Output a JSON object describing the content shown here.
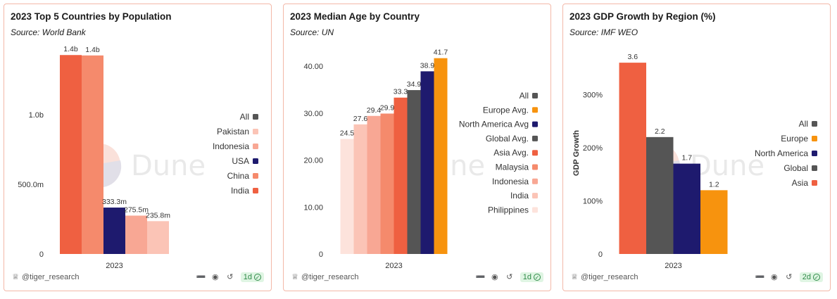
{
  "footer": {
    "user": "@tiger_research"
  },
  "watermark": "Dune",
  "chart_data": [
    {
      "type": "bar",
      "title": "2023 Top 5 Countries by Population",
      "source": "Source: World Bank",
      "xlabel": "",
      "ylabel": "",
      "category": "2023",
      "ylim": [
        0,
        1450000000
      ],
      "yticks": [
        {
          "value": 0,
          "label": "0"
        },
        {
          "value": 500000000,
          "label": "500.0m"
        },
        {
          "value": 1000000000,
          "label": "1.0b"
        }
      ],
      "series": [
        {
          "name": "India",
          "value": 1428600000,
          "label": "1.4b",
          "color": "#ef6041"
        },
        {
          "name": "China",
          "value": 1425700000,
          "label": "1.4b",
          "color": "#f58a6c"
        },
        {
          "name": "USA",
          "value": 333300000,
          "label": "333.3m",
          "color": "#1e1a6e"
        },
        {
          "name": "Indonesia",
          "value": 275500000,
          "label": "275.5m",
          "color": "#f8a794"
        },
        {
          "name": "Pakistan",
          "value": 235800000,
          "label": "235.8m",
          "color": "#fbc4b6"
        }
      ],
      "legend": [
        {
          "label": "All",
          "color": "#555555"
        },
        {
          "label": "Pakistan",
          "color": "#fbc4b6"
        },
        {
          "label": "Indonesia",
          "color": "#f8a794"
        },
        {
          "label": "USA",
          "color": "#1e1a6e"
        },
        {
          "label": "China",
          "color": "#f58a6c"
        },
        {
          "label": "India",
          "color": "#ef6041"
        }
      ],
      "footer_badge": "1d"
    },
    {
      "type": "bar",
      "title": "2023 Median Age by Country",
      "source": "Source: UN",
      "xlabel": "",
      "ylabel": "",
      "category": "2023",
      "ylim": [
        0,
        43
      ],
      "yticks": [
        {
          "value": 0,
          "label": "0"
        },
        {
          "value": 10,
          "label": "10.00"
        },
        {
          "value": 20,
          "label": "20.00"
        },
        {
          "value": 30,
          "label": "30.00"
        },
        {
          "value": 40,
          "label": "40.00"
        }
      ],
      "series": [
        {
          "name": "Philippines",
          "value": 24.5,
          "label": "24.5",
          "color": "#fde3dc"
        },
        {
          "name": "India",
          "value": 27.6,
          "label": "27.6",
          "color": "#fbc4b6"
        },
        {
          "name": "Indonesia",
          "value": 29.4,
          "label": "29.4",
          "color": "#f8a794"
        },
        {
          "name": "Malaysia",
          "value": 29.9,
          "label": "29.9",
          "color": "#f58a6c"
        },
        {
          "name": "Asia Avg.",
          "value": 33.3,
          "label": "33.3",
          "color": "#ef6041"
        },
        {
          "name": "Global Avg.",
          "value": 34.9,
          "label": "34.9",
          "color": "#555555"
        },
        {
          "name": "North America Avg.",
          "value": 38.9,
          "label": "38.9",
          "color": "#1e1a6e"
        },
        {
          "name": "Europe Avg.",
          "value": 41.7,
          "label": "41.7",
          "color": "#f7930e"
        }
      ],
      "legend": [
        {
          "label": "All",
          "color": "#555555"
        },
        {
          "label": "Europe Avg.",
          "color": "#f7930e"
        },
        {
          "label": "North America Avg",
          "color": "#1e1a6e"
        },
        {
          "label": "Global Avg.",
          "color": "#555555"
        },
        {
          "label": "Asia Avg.",
          "color": "#ef6041"
        },
        {
          "label": "Malaysia",
          "color": "#f58a6c"
        },
        {
          "label": "Indonesia",
          "color": "#f8a794"
        },
        {
          "label": "India",
          "color": "#fbc4b6"
        },
        {
          "label": "Philippines",
          "color": "#fde3dc"
        }
      ],
      "footer_badge": "1d"
    },
    {
      "type": "bar",
      "title": "2023 GDP Growth by Region (%)",
      "source": "Source: IMF WEO",
      "xlabel": "",
      "ylabel": "GDP Growth",
      "category": "2023",
      "ylim": [
        0,
        3.8
      ],
      "yticks": [
        {
          "value": 0,
          "label": "0"
        },
        {
          "value": 1,
          "label": "100%"
        },
        {
          "value": 2,
          "label": "200%"
        },
        {
          "value": 3,
          "label": "300%"
        }
      ],
      "series": [
        {
          "name": "Asia",
          "value": 3.6,
          "label": "3.6",
          "color": "#ef6041"
        },
        {
          "name": "Global",
          "value": 2.2,
          "label": "2.2",
          "color": "#555555"
        },
        {
          "name": "North America",
          "value": 1.7,
          "label": "1.7",
          "color": "#1e1a6e"
        },
        {
          "name": "Europe",
          "value": 1.2,
          "label": "1.2",
          "color": "#f7930e"
        }
      ],
      "legend": [
        {
          "label": "All",
          "color": "#555555"
        },
        {
          "label": "Europe",
          "color": "#f7930e"
        },
        {
          "label": "North America",
          "color": "#1e1a6e"
        },
        {
          "label": "Global",
          "color": "#555555"
        },
        {
          "label": "Asia",
          "color": "#ef6041"
        }
      ],
      "footer_badge": "2d"
    }
  ]
}
